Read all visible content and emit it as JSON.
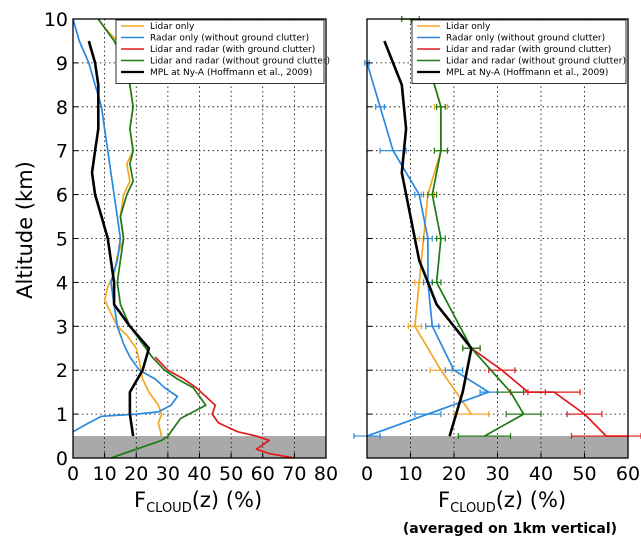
{
  "colors": {
    "lidar_only": "#f5a623",
    "radar_only": "#2a8adf",
    "lidar_radar_clutter": "#e31a1c",
    "lidar_radar_noclutter": "#1e7a14",
    "mpl": "#000000",
    "clutter_band": "#a9a9a9"
  },
  "ylabel": "Altitude (km)",
  "xlabel_main": "F",
  "xlabel_sub": "CLOUD",
  "xlabel_suffix": "(z) (%)",
  "right_note": "(averaged on 1km vertical)",
  "legend": [
    {
      "key": "lidar_only",
      "label": "Lidar only"
    },
    {
      "key": "radar_only",
      "label": "Radar only (without ground clutter)"
    },
    {
      "key": "lidar_radar_clutter",
      "label": "Lidar and radar (with ground clutter)"
    },
    {
      "key": "lidar_radar_noclutter",
      "label": "Lidar and radar (without ground clutter)"
    },
    {
      "key": "mpl",
      "label": "MPL at Ny-A (Hoffmann et al., 2009)"
    }
  ],
  "chart_data": [
    {
      "type": "line",
      "panel": "left",
      "xlim": [
        0,
        80
      ],
      "ylim": [
        0,
        10
      ],
      "xticks": [
        "0",
        "10",
        "20",
        "30",
        "40",
        "50",
        "60",
        "70",
        "80"
      ],
      "yticks": [
        "0",
        "1",
        "2",
        "3",
        "4",
        "5",
        "6",
        "7",
        "8",
        "9",
        "10"
      ],
      "grid": true,
      "legend_position": "top-right",
      "ground_clutter_band": [
        0,
        0.5
      ],
      "series": [
        {
          "key": "lidar_only",
          "points": [
            [
              28,
              0.5
            ],
            [
              27,
              0.8
            ],
            [
              28,
              1.0
            ],
            [
              27,
              1.2
            ],
            [
              24,
              1.5
            ],
            [
              22,
              1.8
            ],
            [
              21,
              2.2
            ],
            [
              20,
              2.5
            ],
            [
              17,
              2.8
            ],
            [
              14,
              3.0
            ],
            [
              12,
              3.3
            ],
            [
              10,
              3.6
            ],
            [
              11,
              3.9
            ],
            [
              13,
              4.2
            ],
            [
              14,
              4.6
            ],
            [
              16,
              5.0
            ],
            [
              15,
              5.5
            ],
            [
              16,
              6.0
            ],
            [
              18,
              6.3
            ],
            [
              17,
              6.7
            ],
            [
              19,
              7.0
            ],
            [
              18,
              7.5
            ],
            [
              19,
              8.0
            ],
            [
              18,
              8.5
            ],
            [
              17,
              9.0
            ],
            [
              14,
              9.5
            ],
            [
              10,
              9.8
            ],
            [
              8,
              10.0
            ]
          ]
        },
        {
          "key": "radar_only",
          "points": [
            [
              0,
              0.6
            ],
            [
              5,
              0.8
            ],
            [
              9,
              0.95
            ],
            [
              20,
              1.0
            ],
            [
              27,
              1.05
            ],
            [
              31,
              1.2
            ],
            [
              33,
              1.4
            ],
            [
              29,
              1.6
            ],
            [
              26,
              1.8
            ],
            [
              21,
              2.0
            ],
            [
              18,
              2.3
            ],
            [
              16,
              2.6
            ],
            [
              14,
              3.0
            ],
            [
              13,
              3.5
            ],
            [
              12,
              4.0
            ],
            [
              14,
              4.5
            ],
            [
              15,
              5.0
            ],
            [
              14,
              5.5
            ],
            [
              13,
              6.0
            ],
            [
              12,
              6.5
            ],
            [
              11,
              7.0
            ],
            [
              10,
              7.5
            ],
            [
              9,
              8.0
            ],
            [
              7,
              8.5
            ],
            [
              5,
              9.0
            ],
            [
              2,
              9.5
            ],
            [
              0,
              10.0
            ]
          ]
        },
        {
          "key": "lidar_radar_clutter",
          "points": [
            [
              70,
              0.0
            ],
            [
              62,
              0.1
            ],
            [
              58,
              0.2
            ],
            [
              60,
              0.3
            ],
            [
              62,
              0.4
            ],
            [
              58,
              0.5
            ],
            [
              52,
              0.6
            ],
            [
              46,
              0.8
            ],
            [
              44,
              1.0
            ],
            [
              45,
              1.2
            ],
            [
              42,
              1.4
            ],
            [
              39,
              1.6
            ],
            [
              35,
              1.8
            ],
            [
              30,
              2.0
            ],
            [
              26,
              2.3
            ]
          ]
        },
        {
          "key": "lidar_radar_noclutter",
          "points": [
            [
              12,
              0.0
            ],
            [
              20,
              0.2
            ],
            [
              28,
              0.4
            ],
            [
              30,
              0.5
            ],
            [
              32,
              0.7
            ],
            [
              34,
              0.9
            ],
            [
              38,
              1.05
            ],
            [
              42,
              1.2
            ],
            [
              40,
              1.4
            ],
            [
              38,
              1.6
            ],
            [
              33,
              1.8
            ],
            [
              29,
              2.0
            ],
            [
              25,
              2.3
            ],
            [
              22,
              2.6
            ],
            [
              18,
              3.0
            ],
            [
              15,
              3.5
            ],
            [
              14,
              4.0
            ],
            [
              15,
              4.5
            ],
            [
              16,
              5.0
            ],
            [
              15,
              5.5
            ],
            [
              17,
              6.0
            ],
            [
              19,
              6.3
            ],
            [
              18,
              6.7
            ],
            [
              19,
              7.0
            ],
            [
              18,
              7.5
            ],
            [
              19,
              8.0
            ],
            [
              18,
              8.5
            ],
            [
              17,
              9.0
            ],
            [
              13,
              9.5
            ],
            [
              8,
              10.0
            ]
          ]
        },
        {
          "key": "mpl",
          "points": [
            [
              19,
              0.5
            ],
            [
              18,
              1.0
            ],
            [
              18,
              1.5
            ],
            [
              22,
              2.0
            ],
            [
              24,
              2.5
            ],
            [
              18,
              3.0
            ],
            [
              13,
              3.5
            ],
            [
              13,
              4.0
            ],
            [
              12,
              4.5
            ],
            [
              11,
              5.0
            ],
            [
              9,
              5.5
            ],
            [
              7,
              6.0
            ],
            [
              6,
              6.5
            ],
            [
              7,
              7.0
            ],
            [
              8,
              7.5
            ],
            [
              8,
              8.0
            ],
            [
              8,
              8.5
            ],
            [
              7,
              9.0
            ],
            [
              5,
              9.5
            ]
          ]
        }
      ]
    },
    {
      "type": "line",
      "panel": "right",
      "xlim": [
        0,
        60
      ],
      "ylim": [
        0,
        10
      ],
      "xticks": [
        "0",
        "10",
        "20",
        "30",
        "40",
        "50",
        "60"
      ],
      "grid": true,
      "legend_position": "top-right",
      "ground_clutter_band": [
        0,
        0.5
      ],
      "series": [
        {
          "key": "lidar_only",
          "points": [
            [
              24,
              1.0
            ],
            [
              17,
              2.0
            ],
            [
              11,
              3.0
            ],
            [
              12,
              4.0
            ],
            [
              13,
              5.0
            ],
            [
              14,
              6.0
            ],
            [
              17,
              7.0
            ],
            [
              17,
              8.0
            ],
            [
              14,
              9.0
            ],
            [
              10,
              10.0
            ]
          ],
          "errors": [
            4,
            2.5,
            1.5,
            1.0,
            1.0,
            1.5,
            1.5,
            1.5,
            2.0,
            2.0
          ]
        },
        {
          "key": "radar_only",
          "points": [
            [
              0,
              0.5
            ],
            [
              14,
              1.0
            ],
            [
              28,
              1.5
            ],
            [
              20,
              2.0
            ],
            [
              15,
              3.0
            ],
            [
              14,
              4.0
            ],
            [
              14,
              5.0
            ],
            [
              12,
              6.0
            ],
            [
              6,
              7.0
            ],
            [
              3,
              8.0
            ],
            [
              0,
              9.0
            ]
          ],
          "errors": [
            3,
            3,
            2,
            2,
            1.5,
            1.0,
            1.0,
            1.0,
            3.0,
            1.0,
            0.5
          ]
        },
        {
          "key": "lidar_radar_clutter",
          "points": [
            [
              60,
              0.5
            ],
            [
              55,
              0.5
            ],
            [
              50,
              1.0
            ],
            [
              43,
              1.5
            ],
            [
              37,
              1.5
            ],
            [
              31,
              2.0
            ],
            [
              24,
              2.5
            ]
          ],
          "errors": [
            0,
            8,
            4,
            6,
            4,
            3,
            2
          ]
        },
        {
          "key": "lidar_radar_noclutter",
          "points": [
            [
              27,
              0.5
            ],
            [
              36,
              1.0
            ],
            [
              33,
              1.5
            ],
            [
              24,
              2.5
            ],
            [
              16,
              4.0
            ],
            [
              17,
              5.0
            ],
            [
              15,
              6.0
            ],
            [
              17,
              7.0
            ],
            [
              17,
              8.0
            ],
            [
              14,
              9.0
            ],
            [
              10,
              10.0
            ]
          ],
          "errors": [
            6,
            4,
            3,
            2,
            1,
            1,
            1,
            1.5,
            1.0,
            2.0,
            2.0
          ]
        },
        {
          "key": "mpl",
          "points": [
            [
              19,
              0.5
            ],
            [
              22,
              1.5
            ],
            [
              24,
              2.5
            ],
            [
              16,
              3.5
            ],
            [
              12,
              4.5
            ],
            [
              10,
              5.5
            ],
            [
              8,
              6.5
            ],
            [
              9,
              7.5
            ],
            [
              8,
              8.5
            ],
            [
              4,
              9.5
            ]
          ]
        }
      ]
    }
  ]
}
